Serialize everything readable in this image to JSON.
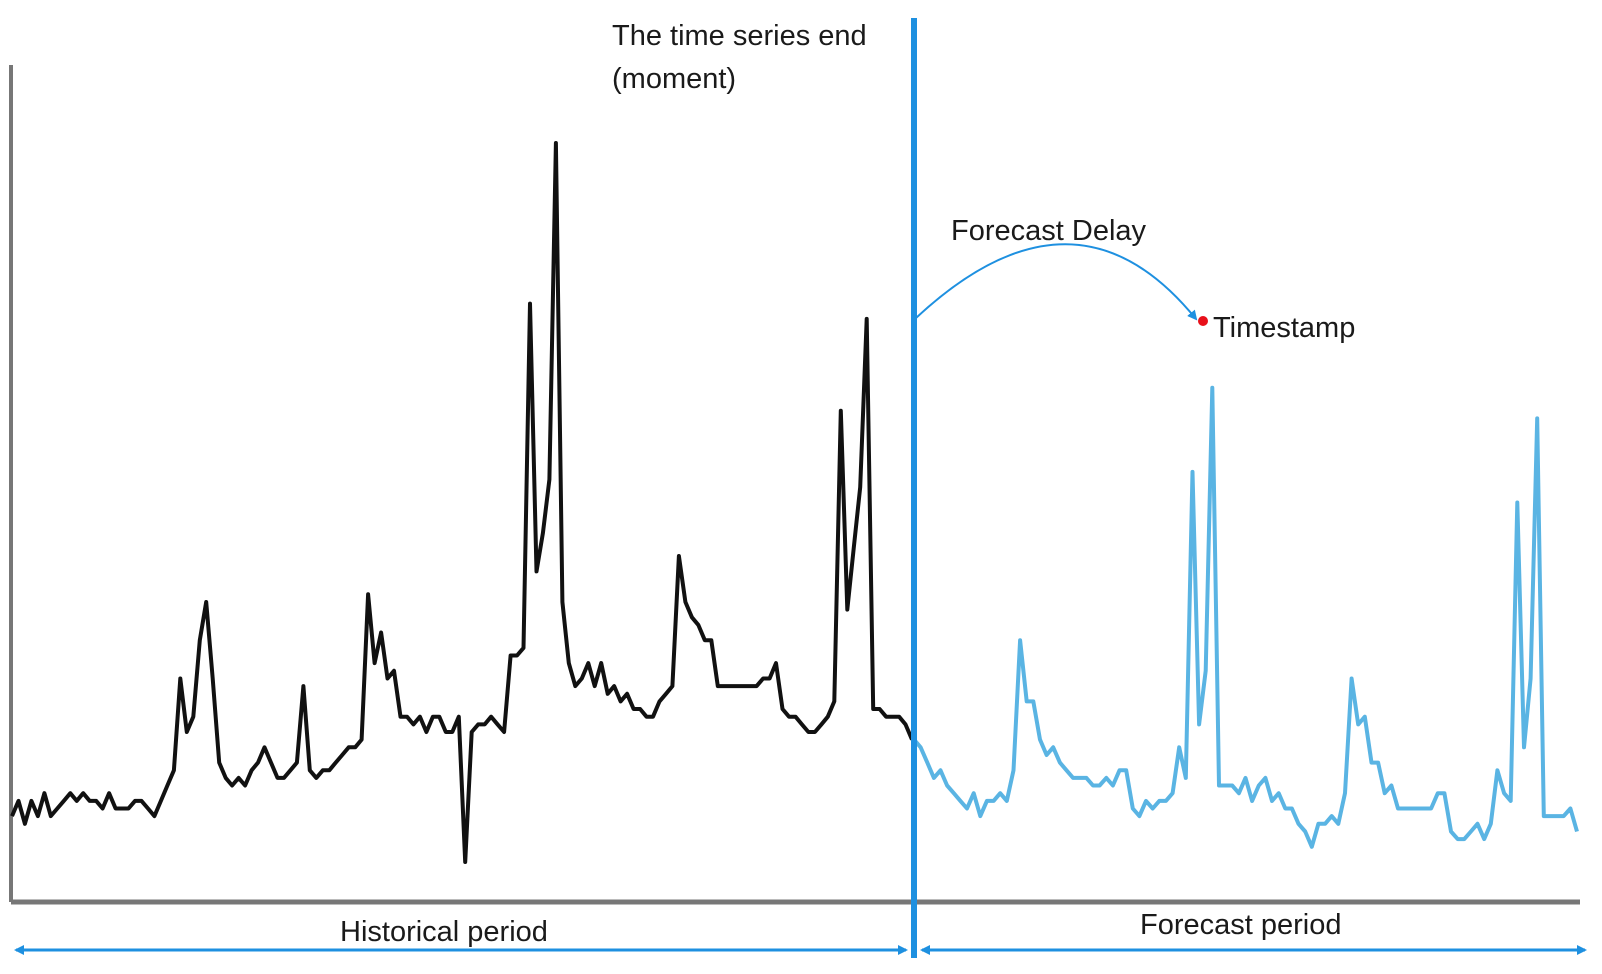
{
  "labels": {
    "series_end_line1": "The time series end",
    "series_end_line2": "(moment)",
    "forecast_delay": "Forecast Delay",
    "timestamp": "Timestamp",
    "historical_period": "Historical period",
    "forecast_period": "Forecast period"
  },
  "colors": {
    "history": "#111111",
    "forecast": "#5ab4e3",
    "divider": "#1e90e0",
    "arrows": "#1e90e0",
    "timestamp_dot": "#e8101a",
    "axis": "#777777"
  },
  "series": {
    "history": [
      0.09,
      0.11,
      0.08,
      0.11,
      0.09,
      0.12,
      0.09,
      0.1,
      0.11,
      0.12,
      0.11,
      0.12,
      0.11,
      0.11,
      0.1,
      0.12,
      0.1,
      0.1,
      0.1,
      0.11,
      0.11,
      0.1,
      0.09,
      0.11,
      0.13,
      0.15,
      0.27,
      0.2,
      0.22,
      0.32,
      0.37,
      0.27,
      0.16,
      0.14,
      0.13,
      0.14,
      0.13,
      0.15,
      0.16,
      0.18,
      0.16,
      0.14,
      0.14,
      0.15,
      0.16,
      0.26,
      0.15,
      0.14,
      0.15,
      0.15,
      0.16,
      0.17,
      0.18,
      0.18,
      0.19,
      0.38,
      0.29,
      0.33,
      0.27,
      0.28,
      0.22,
      0.22,
      0.21,
      0.22,
      0.2,
      0.22,
      0.22,
      0.2,
      0.2,
      0.22,
      0.03,
      0.2,
      0.21,
      0.21,
      0.22,
      0.21,
      0.2,
      0.3,
      0.3,
      0.31,
      0.76,
      0.41,
      0.46,
      0.53,
      0.97,
      0.37,
      0.29,
      0.26,
      0.27,
      0.29,
      0.26,
      0.29,
      0.25,
      0.26,
      0.24,
      0.25,
      0.23,
      0.23,
      0.22,
      0.22,
      0.24,
      0.25,
      0.26,
      0.43,
      0.37,
      0.35,
      0.34,
      0.32,
      0.32,
      0.26,
      0.26,
      0.26,
      0.26,
      0.26,
      0.26,
      0.26,
      0.27,
      0.27,
      0.29,
      0.23,
      0.22,
      0.22,
      0.21,
      0.2,
      0.2,
      0.21,
      0.22,
      0.24,
      0.62,
      0.36,
      0.44,
      0.52,
      0.74,
      0.23,
      0.23,
      0.22,
      0.22,
      0.22,
      0.21,
      0.19
    ],
    "forecast": [
      0.19,
      0.18,
      0.16,
      0.14,
      0.15,
      0.13,
      0.12,
      0.11,
      0.1,
      0.12,
      0.09,
      0.11,
      0.11,
      0.12,
      0.11,
      0.15,
      0.32,
      0.24,
      0.24,
      0.19,
      0.17,
      0.18,
      0.16,
      0.15,
      0.14,
      0.14,
      0.14,
      0.13,
      0.13,
      0.14,
      0.13,
      0.15,
      0.15,
      0.1,
      0.09,
      0.11,
      0.1,
      0.11,
      0.11,
      0.12,
      0.18,
      0.14,
      0.54,
      0.21,
      0.28,
      0.65,
      0.13,
      0.13,
      0.13,
      0.12,
      0.14,
      0.11,
      0.13,
      0.14,
      0.11,
      0.12,
      0.1,
      0.1,
      0.08,
      0.07,
      0.05,
      0.08,
      0.08,
      0.09,
      0.08,
      0.12,
      0.27,
      0.21,
      0.22,
      0.16,
      0.16,
      0.12,
      0.13,
      0.1,
      0.1,
      0.1,
      0.1,
      0.1,
      0.1,
      0.12,
      0.12,
      0.07,
      0.06,
      0.06,
      0.07,
      0.08,
      0.06,
      0.08,
      0.15,
      0.12,
      0.11,
      0.5,
      0.18,
      0.27,
      0.61,
      0.09,
      0.09,
      0.09,
      0.09,
      0.1,
      0.07
    ]
  }
}
